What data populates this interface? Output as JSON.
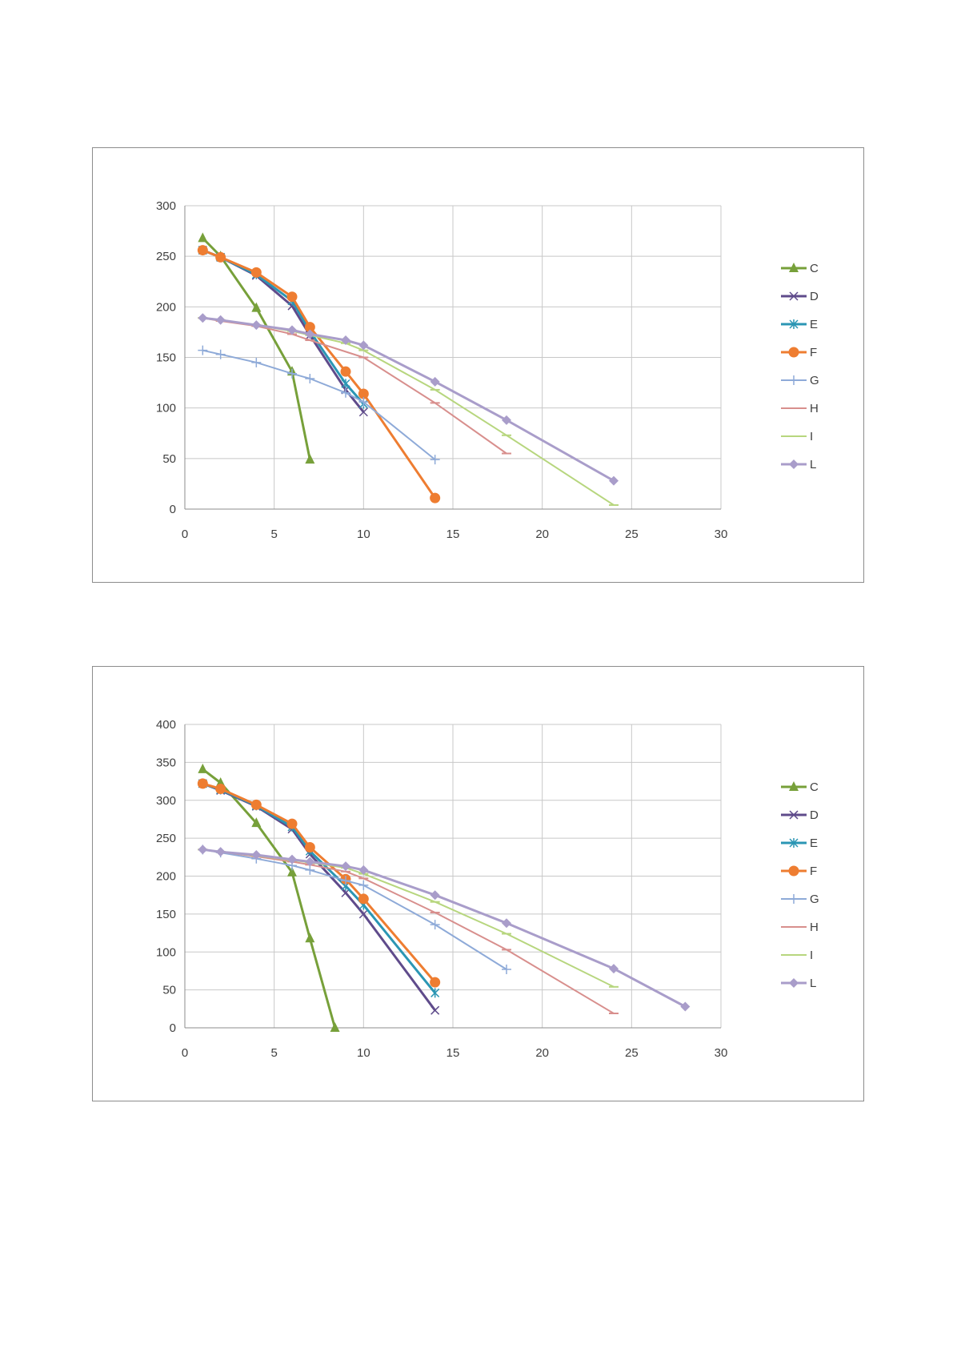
{
  "chart_data": [
    {
      "type": "line",
      "title": "",
      "xlabel": "",
      "ylabel": "",
      "xlim": [
        0,
        30
      ],
      "ylim": [
        0,
        300
      ],
      "x_ticks": [
        0,
        5,
        10,
        15,
        20,
        25,
        30
      ],
      "y_ticks": [
        0,
        50,
        100,
        150,
        200,
        250,
        300
      ],
      "grid": true,
      "legend_position": "right",
      "series": [
        {
          "name": "C",
          "color": "#77a03a",
          "marker": "triangle",
          "width": 3,
          "points": [
            [
              1,
              268
            ],
            [
              2,
              250
            ],
            [
              4,
              199
            ],
            [
              6,
              136
            ],
            [
              7,
              49
            ]
          ]
        },
        {
          "name": "D",
          "color": "#5f4b8b",
          "marker": "x",
          "width": 3,
          "points": [
            [
              1,
              256
            ],
            [
              2,
              249
            ],
            [
              4,
              231
            ],
            [
              6,
              201
            ],
            [
              7,
              172
            ],
            [
              9,
              118
            ],
            [
              10,
              96
            ]
          ]
        },
        {
          "name": "E",
          "color": "#2b96b4",
          "marker": "star",
          "width": 3,
          "points": [
            [
              1,
              256
            ],
            [
              2,
              249
            ],
            [
              4,
              232
            ],
            [
              6,
              206
            ],
            [
              7,
              176
            ],
            [
              9,
              124
            ],
            [
              10,
              104
            ]
          ]
        },
        {
          "name": "F",
          "color": "#ee7d31",
          "marker": "circle",
          "width": 3,
          "points": [
            [
              1,
              256
            ],
            [
              2,
              249
            ],
            [
              4,
              234
            ],
            [
              6,
              210
            ],
            [
              7,
              180
            ],
            [
              9,
              136
            ],
            [
              10,
              114
            ],
            [
              14,
              11
            ]
          ]
        },
        {
          "name": "G",
          "color": "#8eaad8",
          "marker": "plus",
          "width": 2,
          "points": [
            [
              1,
              157
            ],
            [
              2,
              153
            ],
            [
              4,
              145
            ],
            [
              6,
              134
            ],
            [
              7,
              129
            ],
            [
              9,
              115
            ],
            [
              10,
              106
            ],
            [
              14,
              49
            ]
          ]
        },
        {
          "name": "H",
          "color": "#d88f8d",
          "marker": "dash",
          "width": 2,
          "points": [
            [
              1,
              189
            ],
            [
              2,
              186
            ],
            [
              4,
              181
            ],
            [
              6,
              173
            ],
            [
              7,
              167
            ],
            [
              10,
              150
            ],
            [
              14,
              105
            ],
            [
              18,
              55
            ]
          ]
        },
        {
          "name": "I",
          "color": "#b7d67e",
          "marker": "dash",
          "width": 2,
          "points": [
            [
              1,
              189
            ],
            [
              2,
              187
            ],
            [
              4,
              182
            ],
            [
              6,
              176
            ],
            [
              7,
              172
            ],
            [
              9,
              164
            ],
            [
              10,
              157
            ],
            [
              14,
              118
            ],
            [
              18,
              73
            ],
            [
              24,
              4
            ]
          ]
        },
        {
          "name": "L",
          "color": "#a99dca",
          "marker": "diamond",
          "width": 3,
          "points": [
            [
              1,
              189
            ],
            [
              2,
              187
            ],
            [
              4,
              182
            ],
            [
              6,
              177
            ],
            [
              7,
              173
            ],
            [
              9,
              167
            ],
            [
              10,
              162
            ],
            [
              14,
              126
            ],
            [
              18,
              88
            ],
            [
              24,
              28
            ]
          ]
        }
      ]
    },
    {
      "type": "line",
      "title": "",
      "xlabel": "",
      "ylabel": "",
      "xlim": [
        0,
        30
      ],
      "ylim": [
        0,
        400
      ],
      "x_ticks": [
        0,
        5,
        10,
        15,
        20,
        25,
        30
      ],
      "y_ticks": [
        0,
        50,
        100,
        150,
        200,
        250,
        300,
        350,
        400
      ],
      "grid": true,
      "legend_position": "right",
      "series": [
        {
          "name": "C",
          "color": "#77a03a",
          "marker": "triangle",
          "width": 3,
          "points": [
            [
              1,
              341
            ],
            [
              2,
              323
            ],
            [
              4,
              270
            ],
            [
              6,
              205
            ],
            [
              7,
              118
            ],
            [
              8.4,
              0
            ]
          ]
        },
        {
          "name": "D",
          "color": "#5f4b8b",
          "marker": "x",
          "width": 3,
          "points": [
            [
              1,
              322
            ],
            [
              2,
              313
            ],
            [
              4,
              292
            ],
            [
              6,
              262
            ],
            [
              7,
              229
            ],
            [
              9,
              178
            ],
            [
              10,
              150
            ],
            [
              14,
              23
            ]
          ]
        },
        {
          "name": "E",
          "color": "#2b96b4",
          "marker": "star",
          "width": 3,
          "points": [
            [
              1,
              322
            ],
            [
              2,
              314
            ],
            [
              4,
              293
            ],
            [
              6,
              265
            ],
            [
              7,
              233
            ],
            [
              9,
              187
            ],
            [
              10,
              162
            ],
            [
              14,
              46
            ]
          ]
        },
        {
          "name": "F",
          "color": "#ee7d31",
          "marker": "circle",
          "width": 3,
          "points": [
            [
              1,
              322
            ],
            [
              2,
              315
            ],
            [
              4,
              294
            ],
            [
              6,
              269
            ],
            [
              7,
              238
            ],
            [
              9,
              196
            ],
            [
              10,
              170
            ],
            [
              14,
              60
            ]
          ]
        },
        {
          "name": "G",
          "color": "#8eaad8",
          "marker": "plus",
          "width": 2,
          "points": [
            [
              1,
              235
            ],
            [
              2,
              231
            ],
            [
              4,
              223
            ],
            [
              6,
              214
            ],
            [
              7,
              208
            ],
            [
              9,
              194
            ],
            [
              10,
              188
            ],
            [
              14,
              136
            ],
            [
              18,
              77
            ]
          ]
        },
        {
          "name": "H",
          "color": "#d88f8d",
          "marker": "dash",
          "width": 2,
          "points": [
            [
              1,
              235
            ],
            [
              2,
              232
            ],
            [
              4,
              226
            ],
            [
              6,
              219
            ],
            [
              7,
              215
            ],
            [
              9,
              206
            ],
            [
              10,
              197
            ],
            [
              14,
              152
            ],
            [
              18,
              103
            ],
            [
              24,
              19
            ]
          ]
        },
        {
          "name": "I",
          "color": "#b7d67e",
          "marker": "dash",
          "width": 2,
          "points": [
            [
              1,
              235
            ],
            [
              2,
              232
            ],
            [
              4,
              227
            ],
            [
              6,
              221
            ],
            [
              7,
              218
            ],
            [
              9,
              211
            ],
            [
              10,
              203
            ],
            [
              14,
              166
            ],
            [
              18,
              124
            ],
            [
              24,
              54
            ]
          ]
        },
        {
          "name": "L",
          "color": "#a99dca",
          "marker": "diamond",
          "width": 3,
          "points": [
            [
              1,
              235
            ],
            [
              2,
              232
            ],
            [
              4,
              228
            ],
            [
              6,
              222
            ],
            [
              7,
              219
            ],
            [
              9,
              213
            ],
            [
              10,
              208
            ],
            [
              14,
              175
            ],
            [
              18,
              138
            ],
            [
              24,
              78
            ],
            [
              28,
              28
            ]
          ]
        }
      ]
    }
  ]
}
